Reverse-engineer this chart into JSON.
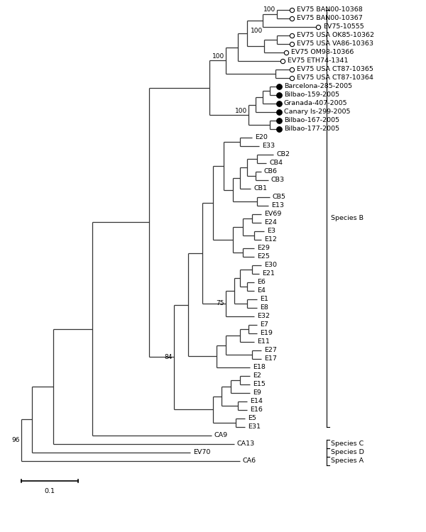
{
  "bg_color": "#ffffff",
  "line_color": "#333333",
  "font_size": 6.8,
  "bootstrap_font_size": 6.5,
  "leaves": [
    {
      "name": "EV75 BAN00-10368",
      "y": 1,
      "marker": "open"
    },
    {
      "name": "EV75 BAN00-10367",
      "y": 2,
      "marker": "open"
    },
    {
      "name": "EV75-10555",
      "y": 3,
      "marker": "open"
    },
    {
      "name": "EV75 USA OK85-10362",
      "y": 4,
      "marker": "open"
    },
    {
      "name": "EV75 USA VA86-10363",
      "y": 5,
      "marker": "open"
    },
    {
      "name": "EV75 OM98-10366",
      "y": 6,
      "marker": "open"
    },
    {
      "name": "EV75 ETH74-1341",
      "y": 7,
      "marker": "open"
    },
    {
      "name": "EV75 USA CT87-10365",
      "y": 8,
      "marker": "open"
    },
    {
      "name": "EV75 USA CT87-10364",
      "y": 9,
      "marker": "open"
    },
    {
      "name": "Barcelona-285-2005",
      "y": 10,
      "marker": "filled"
    },
    {
      "name": "Bilbao-159-2005",
      "y": 11,
      "marker": "filled"
    },
    {
      "name": "Granada-407-2005",
      "y": 12,
      "marker": "filled"
    },
    {
      "name": "Canary Is-299-2005",
      "y": 13,
      "marker": "filled"
    },
    {
      "name": "Bilbao-167-2005",
      "y": 14,
      "marker": "filled"
    },
    {
      "name": "Bilbao-177-2005",
      "y": 15,
      "marker": "filled"
    },
    {
      "name": "E20",
      "y": 16,
      "marker": "none"
    },
    {
      "name": "E33",
      "y": 17,
      "marker": "none"
    },
    {
      "name": "CB2",
      "y": 18,
      "marker": "none"
    },
    {
      "name": "CB4",
      "y": 19,
      "marker": "none"
    },
    {
      "name": "CB6",
      "y": 20,
      "marker": "none"
    },
    {
      "name": "CB3",
      "y": 21,
      "marker": "none"
    },
    {
      "name": "CB1",
      "y": 22,
      "marker": "none"
    },
    {
      "name": "CB5",
      "y": 23,
      "marker": "none"
    },
    {
      "name": "E13",
      "y": 24,
      "marker": "none"
    },
    {
      "name": "EV69",
      "y": 25,
      "marker": "none"
    },
    {
      "name": "E24",
      "y": 26,
      "marker": "none"
    },
    {
      "name": "E3",
      "y": 27,
      "marker": "none"
    },
    {
      "name": "E12",
      "y": 28,
      "marker": "none"
    },
    {
      "name": "E29",
      "y": 29,
      "marker": "none"
    },
    {
      "name": "E25",
      "y": 30,
      "marker": "none"
    },
    {
      "name": "E30",
      "y": 31,
      "marker": "none"
    },
    {
      "name": "E21",
      "y": 32,
      "marker": "none"
    },
    {
      "name": "E6",
      "y": 33,
      "marker": "none"
    },
    {
      "name": "E4",
      "y": 34,
      "marker": "none"
    },
    {
      "name": "E1",
      "y": 35,
      "marker": "none"
    },
    {
      "name": "E8",
      "y": 36,
      "marker": "none"
    },
    {
      "name": "E32",
      "y": 37,
      "marker": "none"
    },
    {
      "name": "E7",
      "y": 38,
      "marker": "none"
    },
    {
      "name": "E19",
      "y": 39,
      "marker": "none"
    },
    {
      "name": "E11",
      "y": 40,
      "marker": "none"
    },
    {
      "name": "E27",
      "y": 41,
      "marker": "none"
    },
    {
      "name": "E17",
      "y": 42,
      "marker": "none"
    },
    {
      "name": "E18",
      "y": 43,
      "marker": "none"
    },
    {
      "name": "E2",
      "y": 44,
      "marker": "none"
    },
    {
      "name": "E15",
      "y": 45,
      "marker": "none"
    },
    {
      "name": "E9",
      "y": 46,
      "marker": "none"
    },
    {
      "name": "E14",
      "y": 47,
      "marker": "none"
    },
    {
      "name": "E16",
      "y": 48,
      "marker": "none"
    },
    {
      "name": "E5",
      "y": 49,
      "marker": "none"
    },
    {
      "name": "E31",
      "y": 50,
      "marker": "none"
    },
    {
      "name": "CA9",
      "y": 51,
      "marker": "none"
    },
    {
      "name": "CA13",
      "y": 52,
      "marker": "none"
    },
    {
      "name": "EV70",
      "y": 53,
      "marker": "none"
    },
    {
      "name": "CA6",
      "y": 54,
      "marker": "none"
    }
  ]
}
